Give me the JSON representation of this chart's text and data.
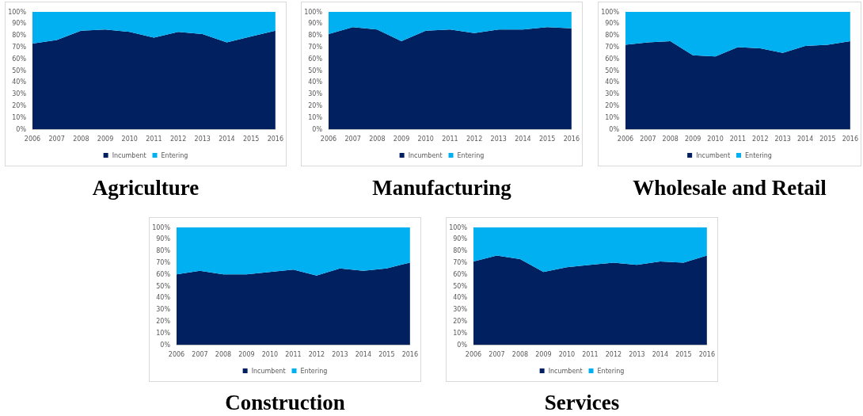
{
  "chart_data": [
    {
      "type": "area",
      "title": "Agriculture",
      "stacked": true,
      "legend": "bottom",
      "grid": false,
      "categories": [
        "2006",
        "2007",
        "2008",
        "2009",
        "2010",
        "2011",
        "2012",
        "2013",
        "2014",
        "2015",
        "2016"
      ],
      "ylim": [
        0,
        100
      ],
      "yticks": [
        {
          "value": 0,
          "label": "0%"
        },
        {
          "value": 10,
          "label": "10%"
        },
        {
          "value": 20,
          "label": "20%"
        },
        {
          "value": 30,
          "label": "30%"
        },
        {
          "value": 40,
          "label": "40%"
        },
        {
          "value": 50,
          "label": "50%"
        },
        {
          "value": 60,
          "label": "60%"
        },
        {
          "value": 70,
          "label": "70%"
        },
        {
          "value": 80,
          "label": "80%"
        },
        {
          "value": 90,
          "label": "90%"
        },
        {
          "value": 100,
          "label": "100%"
        }
      ],
      "series": [
        {
          "name": "Incumbent",
          "color": "#002060",
          "values": [
            73,
            76,
            84,
            85,
            83,
            78,
            83,
            81,
            74,
            79,
            84
          ]
        },
        {
          "name": "Entering",
          "color": "#00b0f0",
          "values": [
            27,
            24,
            16,
            15,
            17,
            22,
            17,
            19,
            26,
            21,
            16
          ]
        }
      ]
    },
    {
      "type": "area",
      "title": "Manufacturing",
      "stacked": true,
      "legend": "bottom",
      "grid": false,
      "categories": [
        "2006",
        "2007",
        "2008",
        "2009",
        "2010",
        "2011",
        "2012",
        "2013",
        "2014",
        "2015",
        "2016"
      ],
      "ylim": [
        0,
        100
      ],
      "yticks": [
        {
          "value": 0,
          "label": "0%"
        },
        {
          "value": 10,
          "label": "10%"
        },
        {
          "value": 20,
          "label": "20%"
        },
        {
          "value": 30,
          "label": "30%"
        },
        {
          "value": 40,
          "label": "40%"
        },
        {
          "value": 50,
          "label": "50%"
        },
        {
          "value": 60,
          "label": "60%"
        },
        {
          "value": 70,
          "label": "70%"
        },
        {
          "value": 80,
          "label": "80%"
        },
        {
          "value": 90,
          "label": "90%"
        },
        {
          "value": 100,
          "label": "100%"
        }
      ],
      "series": [
        {
          "name": "Incumbent",
          "color": "#002060",
          "values": [
            81,
            87,
            85,
            75,
            84,
            85,
            82,
            85,
            85,
            87,
            86
          ]
        },
        {
          "name": "Entering",
          "color": "#00b0f0",
          "values": [
            19,
            13,
            15,
            25,
            16,
            15,
            18,
            15,
            15,
            13,
            14
          ]
        }
      ]
    },
    {
      "type": "area",
      "title": "Wholesale and Retail",
      "stacked": true,
      "legend": "bottom",
      "grid": false,
      "categories": [
        "2006",
        "2007",
        "2008",
        "2009",
        "2010",
        "2011",
        "2012",
        "2013",
        "2014",
        "2015",
        "2016"
      ],
      "ylim": [
        0,
        100
      ],
      "yticks": [
        {
          "value": 0,
          "label": "0%"
        },
        {
          "value": 10,
          "label": "10%"
        },
        {
          "value": 20,
          "label": "20%"
        },
        {
          "value": 30,
          "label": "30%"
        },
        {
          "value": 40,
          "label": "40%"
        },
        {
          "value": 50,
          "label": "50%"
        },
        {
          "value": 60,
          "label": "60%"
        },
        {
          "value": 70,
          "label": "70%"
        },
        {
          "value": 80,
          "label": "80%"
        },
        {
          "value": 90,
          "label": "90%"
        },
        {
          "value": 100,
          "label": "100%"
        }
      ],
      "series": [
        {
          "name": "Incumbent",
          "color": "#002060",
          "values": [
            72,
            74,
            75,
            63,
            62,
            70,
            69,
            65,
            71,
            72,
            75
          ]
        },
        {
          "name": "Entering",
          "color": "#00b0f0",
          "values": [
            28,
            26,
            25,
            37,
            38,
            30,
            31,
            35,
            29,
            28,
            25
          ]
        }
      ]
    },
    {
      "type": "area",
      "title": "Construction",
      "stacked": true,
      "legend": "bottom",
      "grid": false,
      "categories": [
        "2006",
        "2007",
        "2008",
        "2009",
        "2010",
        "2011",
        "2012",
        "2013",
        "2014",
        "2015",
        "2016"
      ],
      "ylim": [
        0,
        100
      ],
      "yticks": [
        {
          "value": 0,
          "label": "0%"
        },
        {
          "value": 10,
          "label": "10%"
        },
        {
          "value": 20,
          "label": "20%"
        },
        {
          "value": 30,
          "label": "30%"
        },
        {
          "value": 40,
          "label": "40%"
        },
        {
          "value": 50,
          "label": "50%"
        },
        {
          "value": 60,
          "label": "60%"
        },
        {
          "value": 70,
          "label": "70%"
        },
        {
          "value": 80,
          "label": "80%"
        },
        {
          "value": 90,
          "label": "90%"
        },
        {
          "value": 100,
          "label": "100%"
        }
      ],
      "series": [
        {
          "name": "Incumbent",
          "color": "#002060",
          "values": [
            60,
            63,
            60,
            60,
            62,
            64,
            59,
            65,
            63,
            65,
            70
          ]
        },
        {
          "name": "Entering",
          "color": "#00b0f0",
          "values": [
            40,
            37,
            40,
            40,
            38,
            36,
            41,
            35,
            37,
            35,
            30
          ]
        }
      ]
    },
    {
      "type": "area",
      "title": "Services",
      "stacked": true,
      "legend": "bottom",
      "grid": false,
      "categories": [
        "2006",
        "2007",
        "2008",
        "2009",
        "2010",
        "2011",
        "2012",
        "2013",
        "2014",
        "2015",
        "2016"
      ],
      "ylim": [
        0,
        100
      ],
      "yticks": [
        {
          "value": 0,
          "label": "0%"
        },
        {
          "value": 10,
          "label": "10%"
        },
        {
          "value": 20,
          "label": "20%"
        },
        {
          "value": 30,
          "label": "30%"
        },
        {
          "value": 40,
          "label": "40%"
        },
        {
          "value": 50,
          "label": "50%"
        },
        {
          "value": 60,
          "label": "60%"
        },
        {
          "value": 70,
          "label": "70%"
        },
        {
          "value": 80,
          "label": "80%"
        },
        {
          "value": 90,
          "label": "90%"
        },
        {
          "value": 100,
          "label": "100%"
        }
      ],
      "series": [
        {
          "name": "Incumbent",
          "color": "#002060",
          "values": [
            71,
            76,
            73,
            62,
            66,
            68,
            70,
            68,
            71,
            70,
            76
          ]
        },
        {
          "name": "Entering",
          "color": "#00b0f0",
          "values": [
            29,
            24,
            27,
            38,
            34,
            32,
            30,
            32,
            29,
            30,
            24
          ]
        }
      ]
    }
  ]
}
